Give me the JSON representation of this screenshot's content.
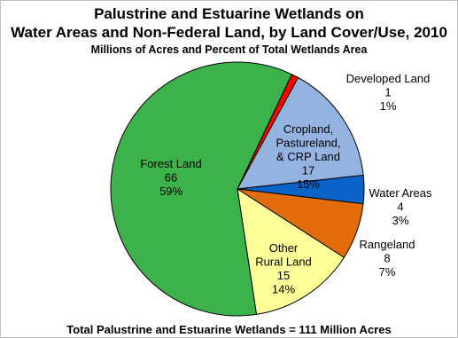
{
  "chart_data": {
    "type": "pie",
    "title": "Palustrine and Estuarine Wetlands on",
    "title_line2": "Water Areas and Non-Federal Land, by Land Cover/Use, 2010",
    "subtitle": "Millions of Acres and Percent of Total Wetlands Area",
    "footer": "Total Palustrine and Estuarine Wetlands = 111 Million Acres",
    "slices": [
      {
        "label_lines": [
          "Developed Land"
        ],
        "value": 1,
        "value_label": "1",
        "percent_label": "1%",
        "color": "#ff0000"
      },
      {
        "label_lines": [
          "Cropland,",
          "Pastureland,",
          "& CRP Land"
        ],
        "value": 17,
        "value_label": "17",
        "percent_label": "15%",
        "color": "#95b3e0"
      },
      {
        "label_lines": [
          "Water Areas"
        ],
        "value": 4,
        "value_label": "4",
        "percent_label": "3%",
        "color": "#0a64c8"
      },
      {
        "label_lines": [
          "Rangeland"
        ],
        "value": 8,
        "value_label": "8",
        "percent_label": "7%",
        "color": "#e36c0a"
      },
      {
        "label_lines": [
          "Other",
          "Rural Land"
        ],
        "value": 15,
        "value_label": "15",
        "percent_label": "14%",
        "color": "#ffff99"
      },
      {
        "label_lines": [
          "Forest Land"
        ],
        "value": 66,
        "value_label": "66",
        "percent_label": "59%",
        "color": "#3cb34a"
      }
    ],
    "total": 111
  }
}
